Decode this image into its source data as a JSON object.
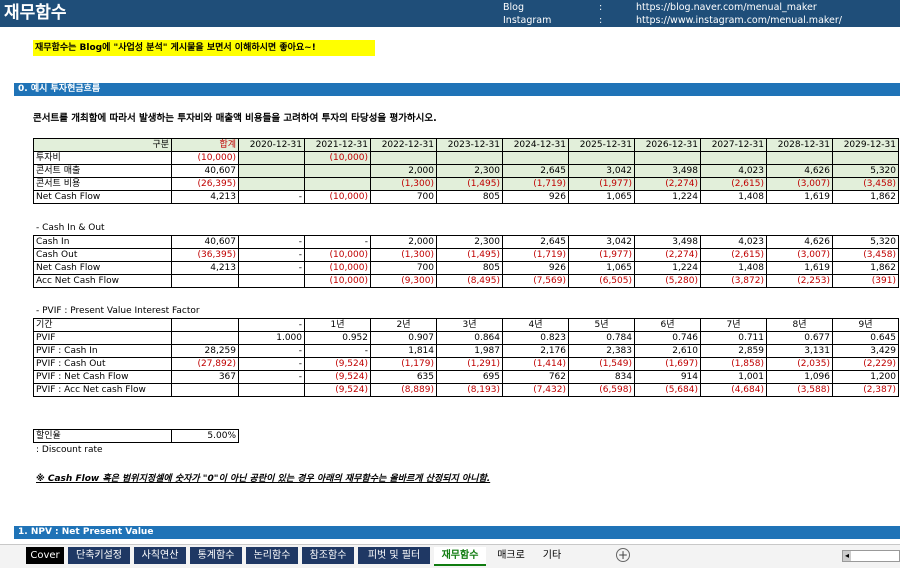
{
  "header": {
    "title": "재무함수",
    "blog_label": "Blog",
    "insta_label": "Instagram",
    "sep": ":",
    "blog_url": "https://blog.naver.com/menual_maker",
    "insta_url": "https://www.instagram.com/menual.maker/"
  },
  "notice": "재무함수는 Blog에 \"사업성 분석\" 게시물을 보면서 이해하시면 좋아요~!",
  "section0": {
    "title": "0. 예시 투자현금흐름",
    "task": "콘서트를 개최함에 따라서 발생하는 투자비와 매출액 비용들을 고려하여 투자의 타당성을 평가하시오."
  },
  "table1": {
    "headers": [
      "구분",
      "합계",
      "2020-12-31",
      "2021-12-31",
      "2022-12-31",
      "2023-12-31",
      "2024-12-31",
      "2025-12-31",
      "2026-12-31",
      "2027-12-31",
      "2028-12-31",
      "2029-12-31"
    ],
    "rows": [
      {
        "label": "투자비",
        "cells": [
          "(10,000)",
          "",
          "(10,000)",
          "",
          "",
          "",
          "",
          "",
          "",
          "",
          ""
        ]
      },
      {
        "label": "콘서트 매출",
        "cells": [
          "40,607",
          "",
          "",
          "2,000",
          "2,300",
          "2,645",
          "3,042",
          "3,498",
          "4,023",
          "4,626",
          "5,320"
        ]
      },
      {
        "label": "콘서트 비용",
        "cells": [
          "(26,395)",
          "",
          "",
          "(1,300)",
          "(1,495)",
          "(1,719)",
          "(1,977)",
          "(2,274)",
          "(2,615)",
          "(3,007)",
          "(3,458)"
        ]
      },
      {
        "label": "Net Cash Flow",
        "cells": [
          "4,213",
          "-",
          "(10,000)",
          "700",
          "805",
          "926",
          "1,065",
          "1,224",
          "1,408",
          "1,619",
          "1,862"
        ]
      }
    ]
  },
  "cashio": {
    "title": " - Cash In & Out",
    "rows": [
      {
        "label": "Cash In",
        "cells": [
          "40,607",
          "-",
          "-",
          "2,000",
          "2,300",
          "2,645",
          "3,042",
          "3,498",
          "4,023",
          "4,626",
          "5,320"
        ]
      },
      {
        "label": "Cash Out",
        "cells": [
          "(36,395)",
          "-",
          "(10,000)",
          "(1,300)",
          "(1,495)",
          "(1,719)",
          "(1,977)",
          "(2,274)",
          "(2,615)",
          "(3,007)",
          "(3,458)"
        ]
      },
      {
        "label": "Net Cash Flow",
        "cells": [
          "4,213",
          "-",
          "(10,000)",
          "700",
          "805",
          "926",
          "1,065",
          "1,224",
          "1,408",
          "1,619",
          "1,862"
        ]
      },
      {
        "label": "Acc Net Cash Flow",
        "cells": [
          "",
          "",
          "(10,000)",
          "(9,300)",
          "(8,495)",
          "(7,569)",
          "(6,505)",
          "(5,280)",
          "(3,872)",
          "(2,253)",
          "(391)"
        ]
      }
    ]
  },
  "pvif": {
    "title": " - PVIF : Present Value Interest Factor",
    "rows": [
      {
        "label": "기간",
        "cells": [
          "",
          "-",
          "1년",
          "2년",
          "3년",
          "4년",
          "5년",
          "6년",
          "7년",
          "8년",
          "9년"
        ]
      },
      {
        "label": "PVIF",
        "cells": [
          "",
          "1.000",
          "0.952",
          "0.907",
          "0.864",
          "0.823",
          "0.784",
          "0.746",
          "0.711",
          "0.677",
          "0.645"
        ]
      },
      {
        "label": "PVIF : Cash In",
        "cells": [
          "28,259",
          "-",
          "-",
          "1,814",
          "1,987",
          "2,176",
          "2,383",
          "2,610",
          "2,859",
          "3,131",
          "3,429"
        ]
      },
      {
        "label": "PVIF : Cash Out",
        "cells": [
          "(27,892)",
          "-",
          "(9,524)",
          "(1,179)",
          "(1,291)",
          "(1,414)",
          "(1,549)",
          "(1,697)",
          "(1,858)",
          "(2,035)",
          "(2,229)"
        ]
      },
      {
        "label": "PVIF : Net Cash Flow",
        "cells": [
          "367",
          "-",
          "(9,524)",
          "635",
          "695",
          "762",
          "834",
          "914",
          "1,001",
          "1,096",
          "1,200"
        ]
      },
      {
        "label": "PVIF : Acc Net cash Flow",
        "cells": [
          "",
          "",
          "(9,524)",
          "(8,889)",
          "(8,193)",
          "(7,432)",
          "(6,598)",
          "(5,684)",
          "(4,684)",
          "(3,588)",
          "(2,387)"
        ]
      }
    ]
  },
  "discount": {
    "label": "할인율",
    "value": "5.00%",
    "note": ": Discount rate"
  },
  "warning": "※ Cash Flow 혹은 범위지정셀에 숫자가 \"0\"이 아닌 공란이 있는 경우 아래의 재무함수는 올바르게 산정되지 아니함.",
  "section1": {
    "title": "1. NPV : Net Present Value"
  },
  "sheet_tabs": [
    {
      "label": "Cover",
      "color": "#000000"
    },
    {
      "label": "단축키설정",
      "color": "#1f3864"
    },
    {
      "label": "사칙연산",
      "color": "#1f3864"
    },
    {
      "label": "통계함수",
      "color": "#1f3864"
    },
    {
      "label": "논리함수",
      "color": "#1f3864"
    },
    {
      "label": "참조함수",
      "color": "#1f3864"
    },
    {
      "label": "피벗 및 필터",
      "color": "#1f3864"
    },
    {
      "label": "재무함수",
      "color": "#ffffff",
      "active": true
    },
    {
      "label": "매크로",
      "color": "#f3f3f3"
    },
    {
      "label": "기타",
      "color": "#f3f3f3"
    }
  ],
  "icons": {
    "add_sheet": "plus-circle-icon"
  }
}
